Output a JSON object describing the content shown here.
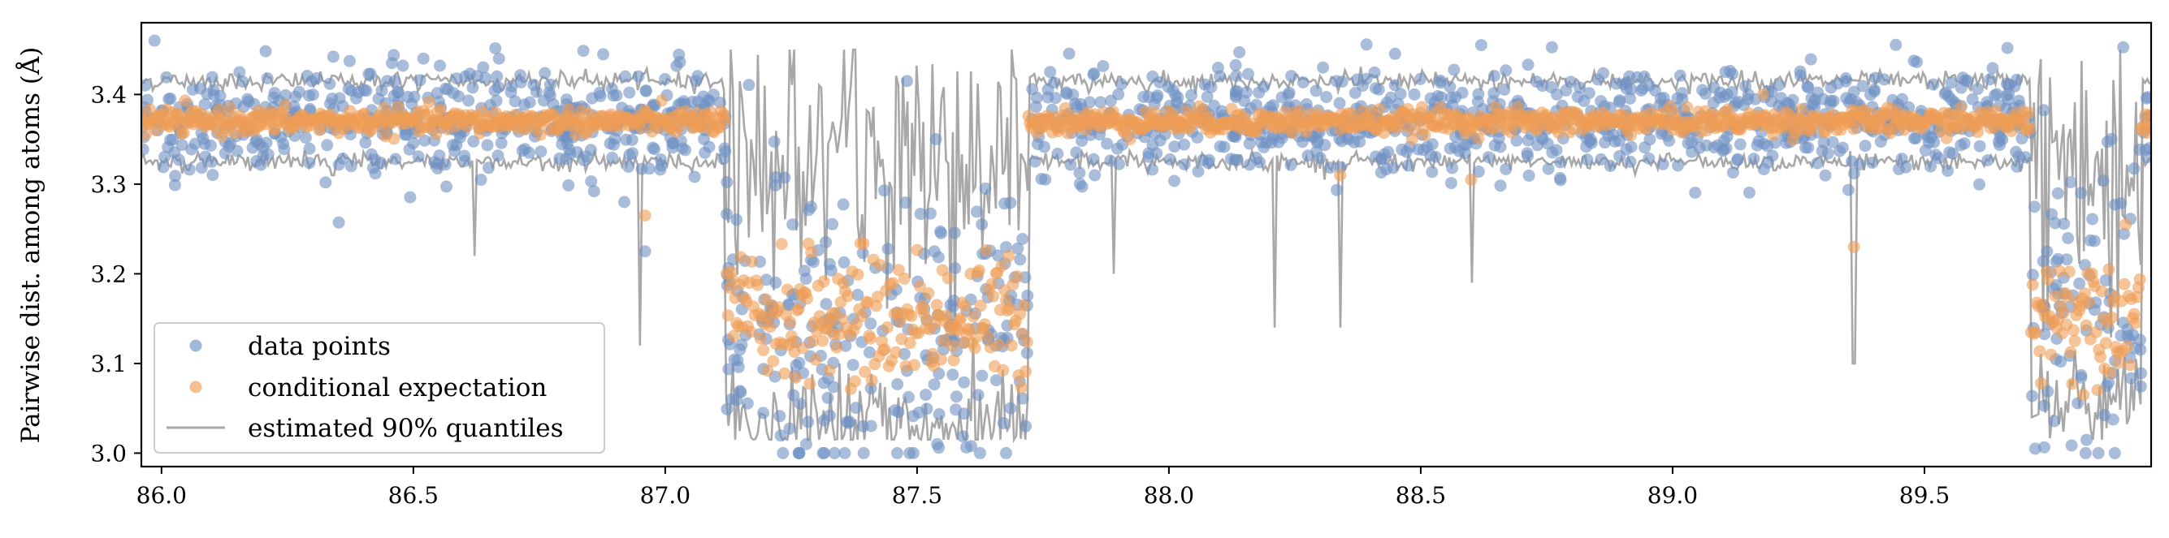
{
  "chart_data": {
    "type": "scatter",
    "title": "",
    "xlabel": "",
    "ylabel": "Pairwise dist. among atoms (Å)",
    "xlim": [
      85.96,
      89.95
    ],
    "ylim": [
      2.985,
      3.48
    ],
    "xticks": [
      86.0,
      86.5,
      87.0,
      87.5,
      88.0,
      88.5,
      89.0,
      89.5
    ],
    "xtick_labels": [
      "86.0",
      "86.5",
      "87.0",
      "87.5",
      "88.0",
      "88.5",
      "89.0",
      "89.5"
    ],
    "yticks": [
      3.0,
      3.1,
      3.2,
      3.3,
      3.4
    ],
    "ytick_labels": [
      "3.0",
      "3.1",
      "3.2",
      "3.3",
      "3.4"
    ],
    "grid": false,
    "legend_position": "lower-left",
    "regimes": [
      {
        "x_start": 85.96,
        "x_end": 87.12,
        "center": 3.37,
        "upper": 3.415,
        "lower": 3.325,
        "spread": 0.03
      },
      {
        "x_start": 87.12,
        "x_end": 87.72,
        "center": 3.15,
        "upper": 3.33,
        "lower": 3.03,
        "spread": 0.09
      },
      {
        "x_start": 87.72,
        "x_end": 89.71,
        "center": 3.37,
        "upper": 3.415,
        "lower": 3.325,
        "spread": 0.03
      },
      {
        "x_start": 89.71,
        "x_end": 89.93,
        "center": 3.16,
        "upper": 3.32,
        "lower": 3.05,
        "spread": 0.09
      },
      {
        "x_start": 89.93,
        "x_end": 89.95,
        "center": 3.37,
        "upper": 3.415,
        "lower": 3.325,
        "spread": 0.03
      }
    ],
    "notable_points": [
      {
        "x": 86.52,
        "y": 3.44
      },
      {
        "x": 86.67,
        "y": 3.44
      },
      {
        "x": 88.62,
        "y": 3.455
      },
      {
        "x": 87.48,
        "y": 3.415
      },
      {
        "x": 86.96,
        "y": 3.225
      },
      {
        "x": 87.28,
        "y": 3.01
      },
      {
        "x": 87.54,
        "y": 3.01
      },
      {
        "x": 89.72,
        "y": 3.005
      },
      {
        "x": 89.82,
        "y": 3.0
      }
    ],
    "outlier_expectations": [
      {
        "x": 86.96,
        "y": 3.265
      },
      {
        "x": 88.34,
        "y": 3.31
      },
      {
        "x": 88.6,
        "y": 3.305
      },
      {
        "x": 89.36,
        "y": 3.23
      },
      {
        "x": 89.18,
        "y": 3.4
      }
    ],
    "quantile_spikes": [
      {
        "x": 86.34,
        "y": 3.31
      },
      {
        "x": 86.62,
        "y": 3.22
      },
      {
        "x": 86.95,
        "y": 3.12
      },
      {
        "x": 87.89,
        "y": 3.2
      },
      {
        "x": 88.21,
        "y": 3.14
      },
      {
        "x": 88.34,
        "y": 3.14
      },
      {
        "x": 88.6,
        "y": 3.19
      },
      {
        "x": 89.36,
        "y": 3.1
      }
    ],
    "series": [
      {
        "name": "data points",
        "kind": "scatter",
        "color": "#6f91c3"
      },
      {
        "name": "conditional expectation",
        "kind": "scatter",
        "color": "#ef9d55"
      },
      {
        "name": "estimated 90% quantiles",
        "kind": "line",
        "color": "#a8a8a8"
      }
    ]
  }
}
